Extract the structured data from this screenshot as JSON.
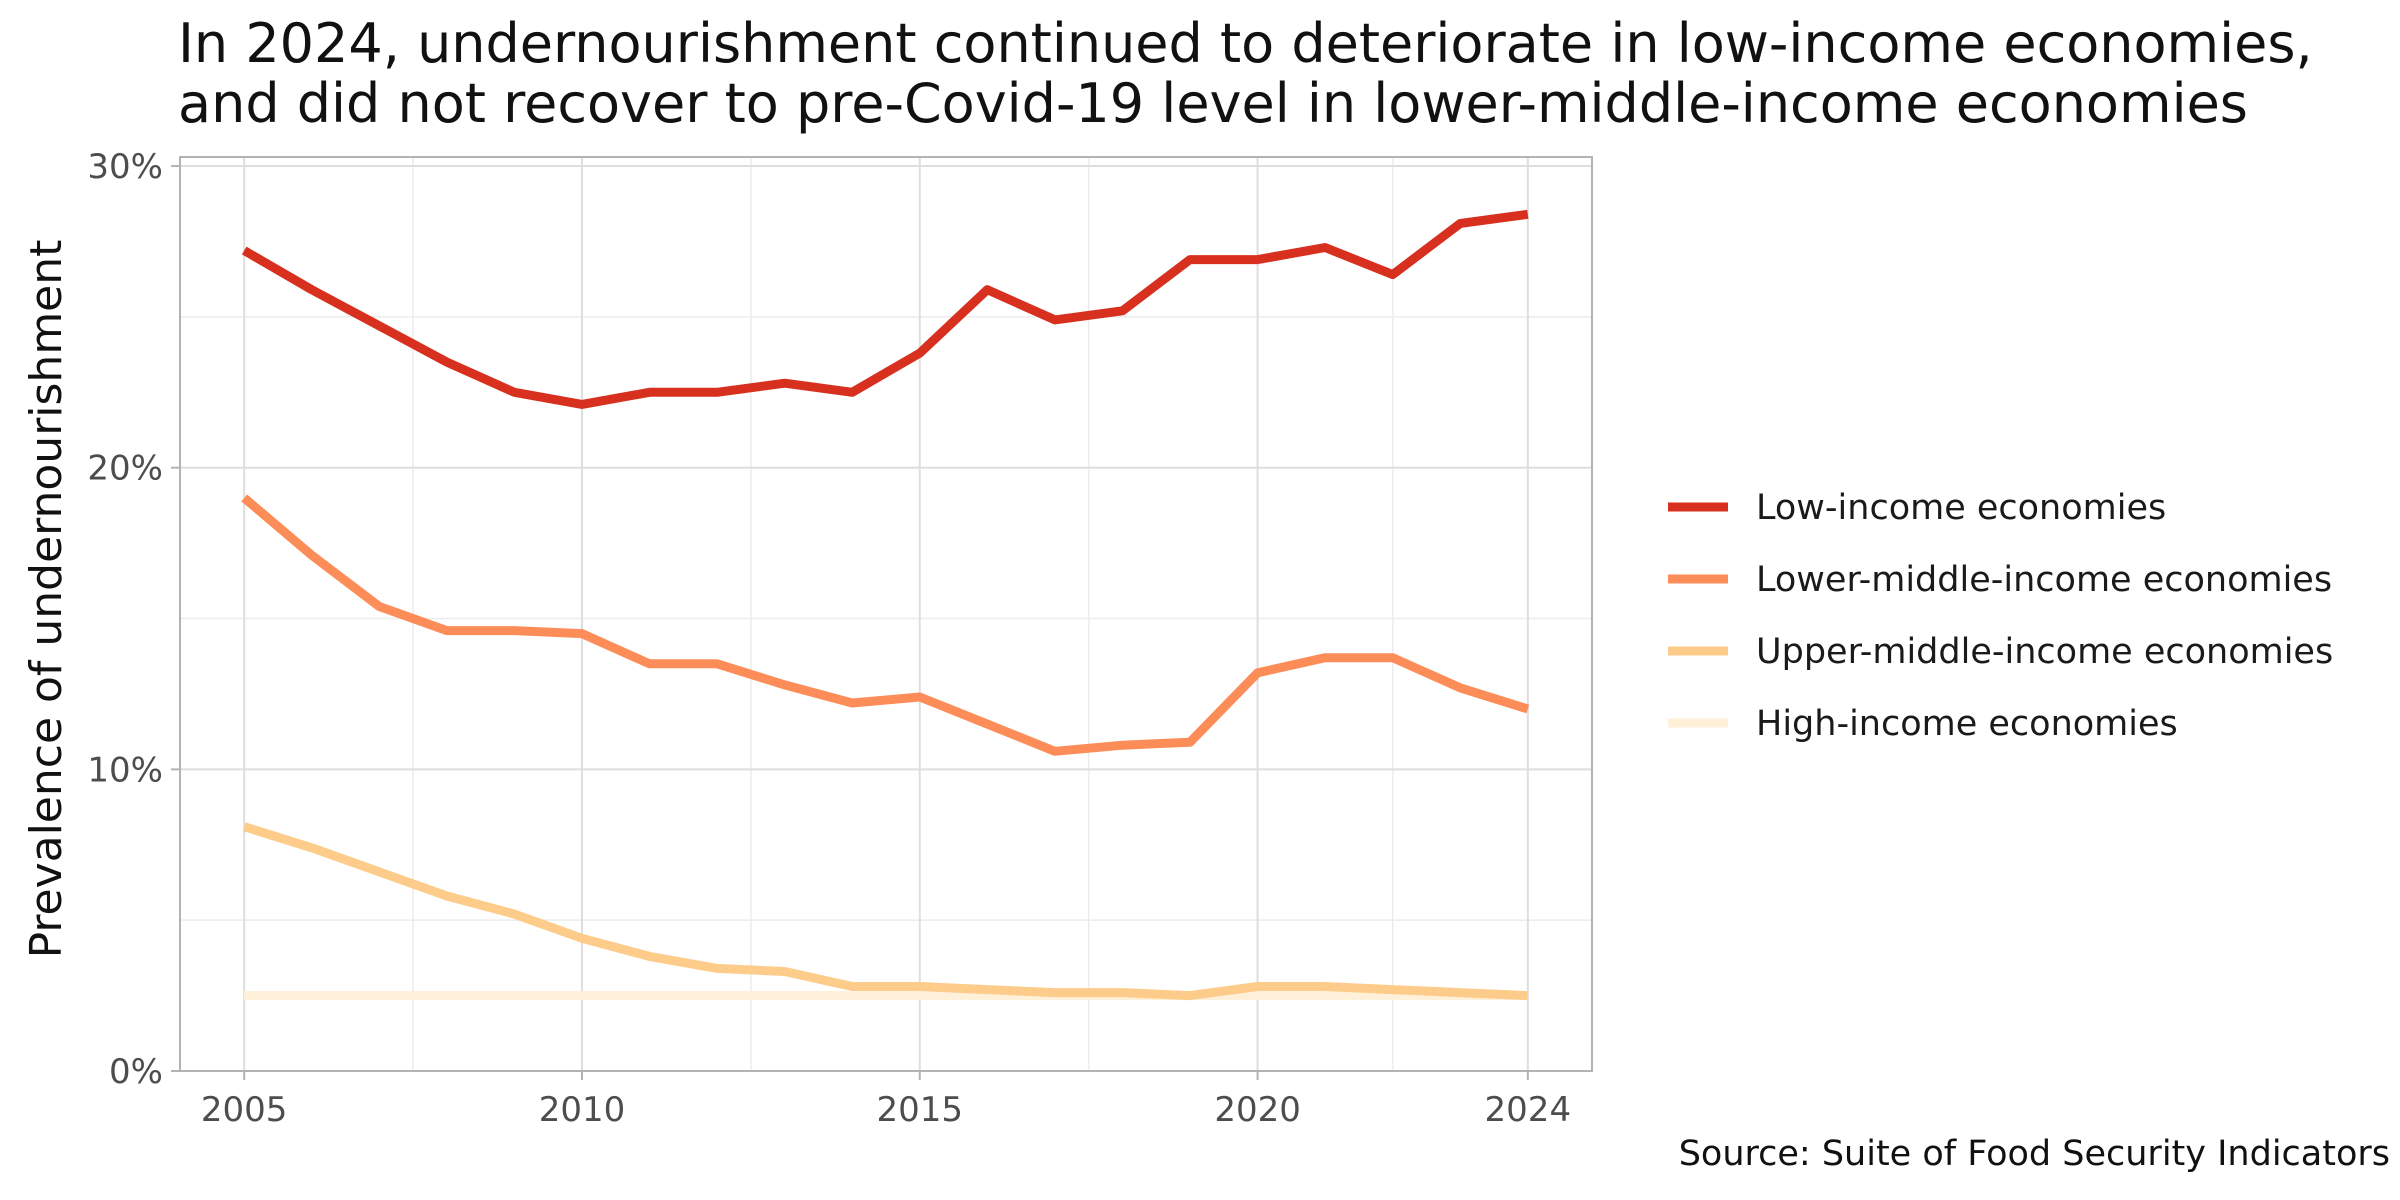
{
  "title_lines": [
    "In 2024, undernourishment continued to deteriorate in low-income economies,",
    "and did not recover to pre-Covid-19 level in lower-middle-income economies"
  ],
  "source": "Source: Suite of Food Security Indicators",
  "chart_data": {
    "type": "line",
    "title": "In 2024, undernourishment continued to deteriorate in low-income economies, and did not recover to pre-Covid-19 level in lower-middle-income economies",
    "xlabel": "",
    "ylabel": "Prevalence of undernourishment",
    "x": [
      2005,
      2006,
      2007,
      2008,
      2009,
      2010,
      2011,
      2012,
      2013,
      2014,
      2015,
      2016,
      2017,
      2018,
      2019,
      2020,
      2021,
      2022,
      2023,
      2024
    ],
    "xlim": [
      2004.05,
      2024.95
    ],
    "ylim": [
      0,
      30.3
    ],
    "x_ticks": [
      2005,
      2010,
      2015,
      2020,
      2024
    ],
    "x_tick_labels": [
      "2005",
      "2010",
      "2015",
      "2020",
      "2024"
    ],
    "x_minor_gridlines": [
      2007.5,
      2012.5,
      2017.5,
      2022
    ],
    "y_ticks": [
      0,
      10,
      20,
      30
    ],
    "y_tick_labels": [
      "0%",
      "10%",
      "20%",
      "30%"
    ],
    "y_minor_gridlines": [
      5,
      15,
      25
    ],
    "grid": true,
    "legend_position": "right",
    "series": [
      {
        "name": "Low-income economies",
        "color": "#d7301f",
        "values": [
          27.2,
          25.9,
          24.7,
          23.5,
          22.5,
          22.1,
          22.5,
          22.5,
          22.8,
          22.5,
          23.8,
          25.9,
          24.9,
          25.2,
          26.9,
          26.9,
          27.3,
          26.4,
          28.1,
          28.4
        ]
      },
      {
        "name": "Lower-middle-income economies",
        "color": "#fc8d59",
        "values": [
          19.0,
          17.1,
          15.4,
          14.6,
          14.6,
          14.5,
          13.5,
          13.5,
          12.8,
          12.2,
          12.4,
          11.5,
          10.6,
          10.8,
          10.9,
          13.2,
          13.7,
          13.7,
          12.7,
          12.0
        ]
      },
      {
        "name": "Upper-middle-income economies",
        "color": "#fdcc8a",
        "values": [
          8.1,
          7.4,
          6.6,
          5.8,
          5.2,
          4.4,
          3.8,
          3.4,
          3.3,
          2.8,
          2.8,
          2.7,
          2.6,
          2.6,
          2.5,
          2.8,
          2.8,
          2.7,
          2.6,
          2.5
        ]
      },
      {
        "name": "High-income economies",
        "color": "#fef0d9",
        "values": [
          2.5,
          2.5,
          2.5,
          2.5,
          2.5,
          2.5,
          2.5,
          2.5,
          2.5,
          2.5,
          2.5,
          2.5,
          2.5,
          2.5,
          2.5,
          2.5,
          2.5,
          2.5,
          2.5,
          2.5
        ]
      }
    ]
  }
}
